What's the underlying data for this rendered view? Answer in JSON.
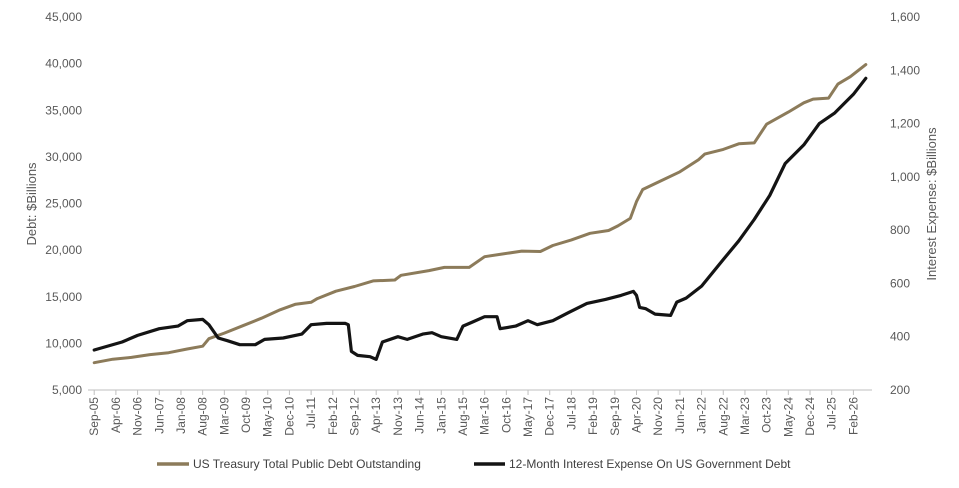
{
  "chart_data": {
    "type": "line",
    "title": "",
    "xlabel": "",
    "ylabel_left": "Debt: $Billions",
    "ylabel_right": "Interest Expense: $Billions",
    "ylim_left": [
      5000,
      45000
    ],
    "ylim_right": [
      200,
      1600
    ],
    "yticks_left": [
      "5,000",
      "10,000",
      "15,000",
      "20,000",
      "25,000",
      "30,000",
      "35,000",
      "40,000",
      "45,000"
    ],
    "yticks_right": [
      "200",
      "400",
      "600",
      "800",
      "1,000",
      "1,200",
      "1,400",
      "1,600"
    ],
    "x_tick_labels": [
      "Sep-05",
      "Apr-06",
      "Nov-06",
      "Jun-07",
      "Jan-08",
      "Aug-08",
      "Mar-09",
      "Oct-09",
      "May-10",
      "Dec-10",
      "Jul-11",
      "Feb-12",
      "Sep-12",
      "Apr-13",
      "Nov-13",
      "Jun-14",
      "Jan-15",
      "Aug-15",
      "Mar-16",
      "Oct-16",
      "May-17",
      "Dec-17",
      "Jul-18",
      "Feb-19",
      "Sep-19",
      "Apr-20",
      "Nov-20",
      "Jun-21",
      "Jan-22",
      "Aug-22",
      "Mar-23",
      "Oct-23",
      "May-24",
      "Dec-24",
      "Jul-25",
      "Feb-26"
    ],
    "grid": false,
    "legend_position": "bottom",
    "series": [
      {
        "name": "US Treasury Total Public Debt Outstanding",
        "axis": "left",
        "color": "#8c7b5a",
        "points": [
          [
            "Sep-05",
            7930
          ],
          [
            "Mar-06",
            8300
          ],
          [
            "Sep-06",
            8500
          ],
          [
            "Mar-07",
            8800
          ],
          [
            "Sep-07",
            9000
          ],
          [
            "Mar-08",
            9400
          ],
          [
            "Aug-08",
            9700
          ],
          [
            "Oct-08",
            10500
          ],
          [
            "Mar-09",
            11100
          ],
          [
            "Sep-09",
            11900
          ],
          [
            "Mar-10",
            12700
          ],
          [
            "Sep-10",
            13600
          ],
          [
            "Feb-11",
            14200
          ],
          [
            "Jul-11",
            14400
          ],
          [
            "Sep-11",
            14800
          ],
          [
            "Mar-12",
            15600
          ],
          [
            "Sep-12",
            16100
          ],
          [
            "Mar-13",
            16700
          ],
          [
            "Oct-13",
            16800
          ],
          [
            "Dec-13",
            17300
          ],
          [
            "Sep-14",
            17800
          ],
          [
            "Feb-15",
            18150
          ],
          [
            "Oct-15",
            18150
          ],
          [
            "Mar-16",
            19300
          ],
          [
            "Sep-16",
            19600
          ],
          [
            "Mar-17",
            19900
          ],
          [
            "Sep-17",
            19850
          ],
          [
            "Jan-18",
            20500
          ],
          [
            "Jul-18",
            21100
          ],
          [
            "Jan-19",
            21800
          ],
          [
            "Jul-19",
            22100
          ],
          [
            "Oct-19",
            22600
          ],
          [
            "Feb-20",
            23400
          ],
          [
            "Apr-20",
            25200
          ],
          [
            "Jun-20",
            26500
          ],
          [
            "Nov-20",
            27300
          ],
          [
            "Jun-21",
            28400
          ],
          [
            "Dec-21",
            29700
          ],
          [
            "Feb-22",
            30300
          ],
          [
            "Aug-22",
            30800
          ],
          [
            "Jan-23",
            31400
          ],
          [
            "Jun-23",
            31500
          ],
          [
            "Oct-23",
            33500
          ],
          [
            "May-24",
            34800
          ],
          [
            "Oct-24",
            35800
          ],
          [
            "Jan-25",
            36200
          ],
          [
            "Jun-25",
            36300
          ],
          [
            "Sep-25",
            37800
          ],
          [
            "Jan-26",
            38600
          ],
          [
            "Jun-26",
            39900
          ]
        ]
      },
      {
        "name": "12-Month Interest Expense On US Government Debt",
        "axis": "right",
        "color": "#141414",
        "points": [
          [
            "Sep-05",
            350
          ],
          [
            "Jun-06",
            380
          ],
          [
            "Nov-06",
            405
          ],
          [
            "Jun-07",
            430
          ],
          [
            "Dec-07",
            440
          ],
          [
            "Mar-08",
            460
          ],
          [
            "Aug-08",
            465
          ],
          [
            "Oct-08",
            445
          ],
          [
            "Jan-09",
            395
          ],
          [
            "Apr-09",
            385
          ],
          [
            "Aug-09",
            370
          ],
          [
            "Jan-10",
            370
          ],
          [
            "Apr-10",
            390
          ],
          [
            "Oct-10",
            395
          ],
          [
            "Apr-11",
            410
          ],
          [
            "Jul-11",
            445
          ],
          [
            "Dec-11",
            450
          ],
          [
            "Jun-12",
            450
          ],
          [
            "Jul-12",
            445
          ],
          [
            "Aug-12",
            345
          ],
          [
            "Oct-12",
            330
          ],
          [
            "Feb-13",
            325
          ],
          [
            "Apr-13",
            315
          ],
          [
            "Jun-13",
            380
          ],
          [
            "Nov-13",
            400
          ],
          [
            "Feb-14",
            390
          ],
          [
            "Jul-14",
            410
          ],
          [
            "Oct-14",
            415
          ],
          [
            "Jan-15",
            400
          ],
          [
            "Jun-15",
            390
          ],
          [
            "Aug-15",
            440
          ],
          [
            "Nov-15",
            455
          ],
          [
            "Mar-16",
            475
          ],
          [
            "Jul-16",
            475
          ],
          [
            "Aug-16",
            430
          ],
          [
            "Jan-17",
            440
          ],
          [
            "May-17",
            460
          ],
          [
            "Aug-17",
            445
          ],
          [
            "Jan-18",
            460
          ],
          [
            "Jun-18",
            490
          ],
          [
            "Dec-18",
            525
          ],
          [
            "Jun-19",
            540
          ],
          [
            "Nov-19",
            555
          ],
          [
            "Mar-20",
            570
          ],
          [
            "Apr-20",
            555
          ],
          [
            "May-20",
            510
          ],
          [
            "Jul-20",
            505
          ],
          [
            "Oct-20",
            485
          ],
          [
            "Mar-21",
            480
          ],
          [
            "May-21",
            530
          ],
          [
            "Aug-21",
            545
          ],
          [
            "Jan-22",
            590
          ],
          [
            "Aug-22",
            690
          ],
          [
            "Jan-23",
            760
          ],
          [
            "Jun-23",
            840
          ],
          [
            "Nov-23",
            930
          ],
          [
            "Apr-24",
            1050
          ],
          [
            "Oct-24",
            1120
          ],
          [
            "Mar-25",
            1200
          ],
          [
            "Aug-25",
            1240
          ],
          [
            "Feb-26",
            1310
          ],
          [
            "Jun-26",
            1370
          ]
        ]
      }
    ]
  }
}
